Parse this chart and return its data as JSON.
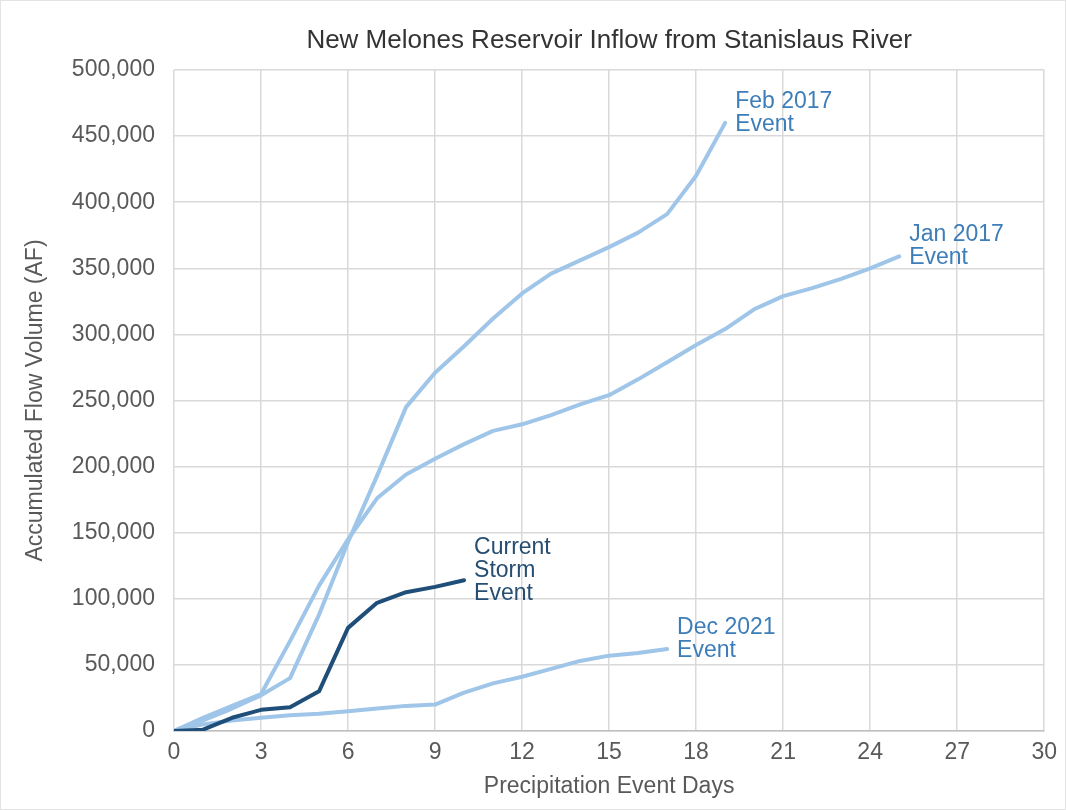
{
  "chart_data": {
    "type": "line",
    "title": "New Melones Reservoir Inflow from Stanislaus River",
    "xlabel": "Precipitation Event Days",
    "ylabel": "Accumulated Flow Volume (AF)",
    "series": [
      {
        "name": "Current Storm Event",
        "color": "#1f4e79",
        "x": [
          0,
          1,
          2,
          3,
          4,
          5,
          6,
          7,
          8,
          9,
          10
        ],
        "values": [
          0,
          1000,
          10000,
          16000,
          18000,
          30000,
          78000,
          97000,
          105000,
          109000,
          114000
        ]
      },
      {
        "name": "Feb 2017 Event",
        "color": "#9fc5e8",
        "x": [
          0,
          1,
          2,
          3,
          4,
          5,
          6,
          7,
          8,
          9,
          10,
          11,
          12,
          13,
          14,
          15,
          16,
          17,
          18,
          19
        ],
        "values": [
          0,
          8000,
          17000,
          27000,
          40000,
          88000,
          143000,
          193000,
          245000,
          271000,
          291000,
          312000,
          331000,
          346000,
          356000,
          366000,
          377000,
          391000,
          420000,
          460000
        ]
      },
      {
        "name": "Jan 2017 Event",
        "color": "#9fc5e8",
        "x": [
          0,
          1,
          2,
          3,
          4,
          5,
          6,
          7,
          8,
          9,
          10,
          11,
          12,
          13,
          14,
          15,
          16,
          17,
          18,
          19,
          20,
          21,
          22,
          23,
          24,
          25
        ],
        "values": [
          0,
          10000,
          19000,
          28000,
          68000,
          110000,
          145000,
          176000,
          194000,
          206000,
          217000,
          227000,
          232000,
          239000,
          247000,
          254000,
          266000,
          279000,
          292000,
          304000,
          319000,
          329000,
          335000,
          342000,
          350000,
          359000
        ]
      },
      {
        "name": "Dec 2021 Event",
        "color": "#9fc5e8",
        "x": [
          0,
          1,
          2,
          3,
          4,
          5,
          6,
          7,
          8,
          9,
          10,
          11,
          12,
          13,
          14,
          15,
          16,
          17
        ],
        "values": [
          0,
          5000,
          8000,
          10000,
          12000,
          13000,
          15000,
          17000,
          19000,
          20000,
          29000,
          36000,
          41000,
          47000,
          53000,
          57000,
          59000,
          62000
        ]
      }
    ],
    "xlim": [
      0,
      30
    ],
    "xticks": [
      0,
      3,
      6,
      9,
      12,
      15,
      18,
      21,
      24,
      27,
      30
    ],
    "ylim": [
      0,
      500000
    ],
    "yticks": [
      0,
      {
        "value": 50000,
        "label": "50,000"
      },
      {
        "value": 100000,
        "label": "100,000"
      },
      {
        "value": 150000,
        "label": "150,000"
      },
      {
        "value": 200000,
        "label": "200,000"
      },
      {
        "value": 250000,
        "label": "250,000"
      },
      {
        "value": 300000,
        "label": "300,000"
      },
      {
        "value": 350000,
        "label": "350,000"
      },
      {
        "value": 400000,
        "label": "400,000"
      },
      {
        "value": 450000,
        "label": "450,000"
      },
      {
        "value": 500000,
        "label": "500,000"
      }
    ],
    "grid": true,
    "legend": false,
    "marker": "none",
    "line_style": "solid"
  }
}
